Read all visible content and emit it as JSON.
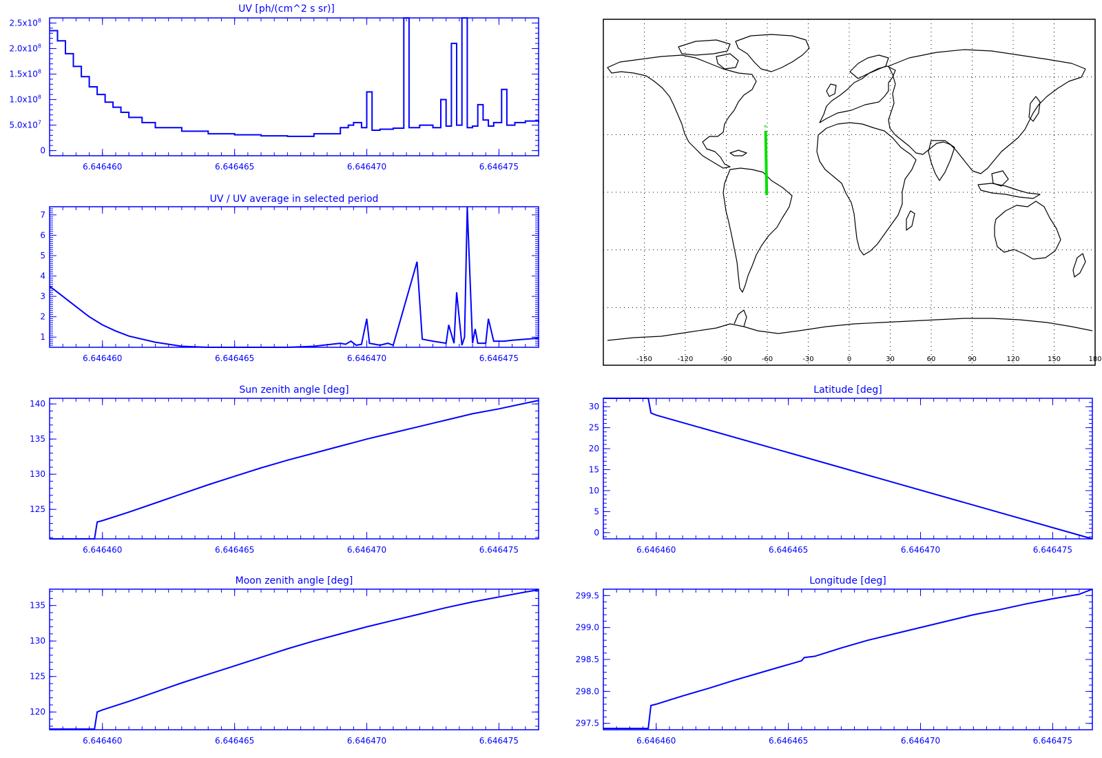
{
  "colors": {
    "plot": "#0000ff",
    "map_line": "#000000",
    "track": "#00e000",
    "background": "#ffffff"
  },
  "chart_data": [
    {
      "id": "uv",
      "type": "line",
      "step": true,
      "title": "UV [ph/(cm^2 s sr)]",
      "xlabel": "",
      "ylabel": "",
      "xlim": [
        6.646458,
        6.6464765
      ],
      "ylim": [
        -10000000.0,
        260000000.0
      ],
      "x_ticks": [
        "6.646460",
        "6.646465",
        "6.646470",
        "6.646475"
      ],
      "y_ticks": [
        {
          "value": 0,
          "label": "0"
        },
        {
          "value": 50000000.0,
          "label": "5.0x10",
          "exp": "7"
        },
        {
          "value": 100000000.0,
          "label": "1.0x10",
          "exp": "8"
        },
        {
          "value": 150000000.0,
          "label": "1.5x10",
          "exp": "8"
        },
        {
          "value": 200000000.0,
          "label": "2.0x10",
          "exp": "8"
        },
        {
          "value": 250000000.0,
          "label": "2.5x10",
          "exp": "8"
        }
      ],
      "x": [
        6.646458,
        6.6464583,
        6.6464586,
        6.6464589,
        6.6464592,
        6.6464595,
        6.6464598,
        6.6464601,
        6.6464604,
        6.6464607,
        6.646461,
        6.6464615,
        6.646462,
        6.646463,
        6.646464,
        6.646465,
        6.646466,
        6.646467,
        6.646468,
        6.646469,
        6.6464693,
        6.6464695,
        6.6464698,
        6.64647,
        6.6464702,
        6.6464705,
        6.646471,
        6.6464714,
        6.6464716,
        6.646472,
        6.6464725,
        6.6464728,
        6.646473,
        6.6464732,
        6.6464734,
        6.6464736,
        6.6464738,
        6.646474,
        6.6464742,
        6.6464744,
        6.6464746,
        6.6464748,
        6.6464751,
        6.6464753,
        6.6464756,
        6.646476,
        6.6464765
      ],
      "values": [
        235000000.0,
        215000000.0,
        190000000.0,
        165000000.0,
        145000000.0,
        125000000.0,
        110000000.0,
        95000000.0,
        85000000.0,
        75000000.0,
        65000000.0,
        55000000.0,
        45000000.0,
        38000000.0,
        33000000.0,
        31000000.0,
        29000000.0,
        28000000.0,
        33000000.0,
        45000000.0,
        50000000.0,
        55000000.0,
        45000000.0,
        115000000.0,
        40000000.0,
        42000000.0,
        44000000.0,
        300000000.0,
        45000000.0,
        50000000.0,
        45000000.0,
        100000000.0,
        48000000.0,
        210000000.0,
        50000000.0,
        300000000.0,
        45000000.0,
        48000000.0,
        90000000.0,
        60000000.0,
        48000000.0,
        55000000.0,
        120000000.0,
        50000000.0,
        55000000.0,
        58000000.0,
        55000000.0
      ]
    },
    {
      "id": "uv_ratio",
      "type": "line",
      "title": "UV / UV average in selected period",
      "xlabel": "",
      "ylabel": "",
      "xlim": [
        6.646458,
        6.6464765
      ],
      "ylim": [
        0.5,
        7.4
      ],
      "x_ticks": [
        "6.646460",
        "6.646465",
        "6.646470",
        "6.646475"
      ],
      "y_ticks": [
        {
          "value": 1,
          "label": "1"
        },
        {
          "value": 2,
          "label": "2"
        },
        {
          "value": 3,
          "label": "3"
        },
        {
          "value": 4,
          "label": "4"
        },
        {
          "value": 5,
          "label": "5"
        },
        {
          "value": 6,
          "label": "6"
        },
        {
          "value": 7,
          "label": "7"
        }
      ],
      "x": [
        6.646458,
        6.6464585,
        6.646459,
        6.6464595,
        6.64646,
        6.6464605,
        6.646461,
        6.646462,
        6.646463,
        6.646464,
        6.646465,
        6.646466,
        6.646467,
        6.646468,
        6.646469,
        6.6464692,
        6.6464694,
        6.6464696,
        6.6464698,
        6.64647,
        6.6464701,
        6.6464705,
        6.6464708,
        6.646471,
        6.6464719,
        6.6464721,
        6.6464725,
        6.646473,
        6.6464731,
        6.6464733,
        6.6464734,
        6.6464736,
        6.6464737,
        6.6464738,
        6.646474,
        6.6464741,
        6.6464742,
        6.6464745,
        6.6464746,
        6.6464748,
        6.6464752,
        6.6464755,
        6.646476,
        6.6464765
      ],
      "values": [
        3.5,
        3.0,
        2.5,
        2.0,
        1.6,
        1.3,
        1.05,
        0.75,
        0.55,
        0.5,
        0.48,
        0.45,
        0.45,
        0.55,
        0.7,
        0.65,
        0.8,
        0.6,
        0.65,
        1.9,
        0.7,
        0.6,
        0.7,
        0.6,
        4.7,
        0.9,
        0.8,
        0.7,
        1.6,
        0.7,
        3.2,
        0.6,
        1.0,
        7.4,
        0.7,
        1.4,
        0.7,
        0.7,
        1.9,
        0.8,
        0.8,
        0.85,
        0.9,
        0.95
      ]
    },
    {
      "id": "sun_zenith",
      "type": "line",
      "title": "Sun zenith angle [deg]",
      "xlabel": "",
      "ylabel": "",
      "xlim": [
        6.646458,
        6.6464765
      ],
      "ylim": [
        120.8,
        140.8
      ],
      "x_ticks": [
        "6.646460",
        "6.646465",
        "6.646470",
        "6.646475"
      ],
      "y_ticks": [
        {
          "value": 125,
          "label": "125"
        },
        {
          "value": 130,
          "label": "130"
        },
        {
          "value": 135,
          "label": "135"
        },
        {
          "value": 140,
          "label": "140"
        }
      ],
      "x": [
        6.646458,
        6.6464597,
        6.6464598,
        6.64646,
        6.646461,
        6.646462,
        6.646463,
        6.646464,
        6.646465,
        6.646466,
        6.646467,
        6.646468,
        6.646469,
        6.64647,
        6.646471,
        6.646472,
        6.646473,
        6.646474,
        6.646475,
        6.646476,
        6.6464765
      ],
      "values": [
        120.8,
        120.8,
        123.2,
        123.4,
        124.6,
        125.9,
        127.2,
        128.5,
        129.7,
        130.9,
        132.0,
        133.0,
        134.0,
        135.0,
        135.9,
        136.8,
        137.7,
        138.6,
        139.3,
        140.1,
        140.5
      ]
    },
    {
      "id": "latitude",
      "type": "line",
      "title": "Latitude [deg]",
      "xlabel": "",
      "ylabel": "",
      "xlim": [
        6.646458,
        6.6464765
      ],
      "ylim": [
        -1.5,
        32
      ],
      "x_ticks": [
        "6.646460",
        "6.646465",
        "6.646470",
        "6.646475"
      ],
      "y_ticks": [
        {
          "value": 0,
          "label": "0"
        },
        {
          "value": 5,
          "label": "5"
        },
        {
          "value": 10,
          "label": "10"
        },
        {
          "value": 15,
          "label": "15"
        },
        {
          "value": 20,
          "label": "20"
        },
        {
          "value": 25,
          "label": "25"
        },
        {
          "value": 30,
          "label": "30"
        }
      ],
      "x": [
        6.646458,
        6.6464597,
        6.6464598,
        6.64646,
        6.6464765
      ],
      "values": [
        32,
        32,
        28.5,
        28,
        -1.5
      ]
    },
    {
      "id": "moon_zenith",
      "type": "line",
      "title": "Moon zenith angle [deg]",
      "xlabel": "",
      "ylabel": "",
      "xlim": [
        6.646458,
        6.6464765
      ],
      "ylim": [
        117.5,
        137.3
      ],
      "x_ticks": [
        "6.646460",
        "6.646465",
        "6.646470",
        "6.646475"
      ],
      "y_ticks": [
        {
          "value": 120,
          "label": "120"
        },
        {
          "value": 125,
          "label": "125"
        },
        {
          "value": 130,
          "label": "130"
        },
        {
          "value": 135,
          "label": "135"
        }
      ],
      "x": [
        6.646458,
        6.6464597,
        6.6464598,
        6.64646,
        6.646461,
        6.646462,
        6.646463,
        6.646464,
        6.646465,
        6.646466,
        6.646467,
        6.646468,
        6.646469,
        6.64647,
        6.646471,
        6.646472,
        6.646473,
        6.646474,
        6.646475,
        6.646476,
        6.6464765
      ],
      "values": [
        117.6,
        117.6,
        120.0,
        120.3,
        121.5,
        122.8,
        124.1,
        125.3,
        126.5,
        127.7,
        128.9,
        130.0,
        131.0,
        132.0,
        132.9,
        133.8,
        134.7,
        135.5,
        136.2,
        136.9,
        137.2
      ]
    },
    {
      "id": "longitude",
      "type": "line",
      "title": "Longitude [deg]",
      "xlabel": "",
      "ylabel": "",
      "xlim": [
        6.646458,
        6.6464765
      ],
      "ylim": [
        297.4,
        299.6
      ],
      "x_ticks": [
        "6.646460",
        "6.646465",
        "6.646470",
        "6.646475"
      ],
      "y_ticks": [
        {
          "value": 297.5,
          "label": "297.5"
        },
        {
          "value": 298.0,
          "label": "298.0"
        },
        {
          "value": 298.5,
          "label": "298.5"
        },
        {
          "value": 299.0,
          "label": "299.0"
        },
        {
          "value": 299.5,
          "label": "299.5"
        }
      ],
      "x": [
        6.646458,
        6.6464597,
        6.6464598,
        6.64646,
        6.646461,
        6.646462,
        6.646463,
        6.646464,
        6.646465,
        6.6464655,
        6.6464656,
        6.646466,
        6.646467,
        6.646468,
        6.646469,
        6.64647,
        6.646471,
        6.646472,
        6.646473,
        6.646474,
        6.646475,
        6.646476,
        6.6464765
      ],
      "values": [
        297.42,
        297.42,
        297.78,
        297.8,
        297.93,
        298.05,
        298.18,
        298.3,
        298.42,
        298.48,
        298.53,
        298.55,
        298.68,
        298.8,
        298.9,
        299.0,
        299.1,
        299.2,
        299.28,
        299.37,
        299.45,
        299.52,
        299.6
      ]
    }
  ],
  "map": {
    "x_ticks": [
      "-150",
      "-120",
      "-90",
      "-60",
      "-30",
      "0",
      "30",
      "60",
      "90",
      "120",
      "150",
      "180"
    ],
    "lon_range": [
      -180,
      180
    ],
    "lat_range": [
      -90,
      90
    ],
    "track": {
      "lon_start": -61.2,
      "lat_start": 32,
      "lon_end": -60.4,
      "lat_end": -1.5
    }
  }
}
